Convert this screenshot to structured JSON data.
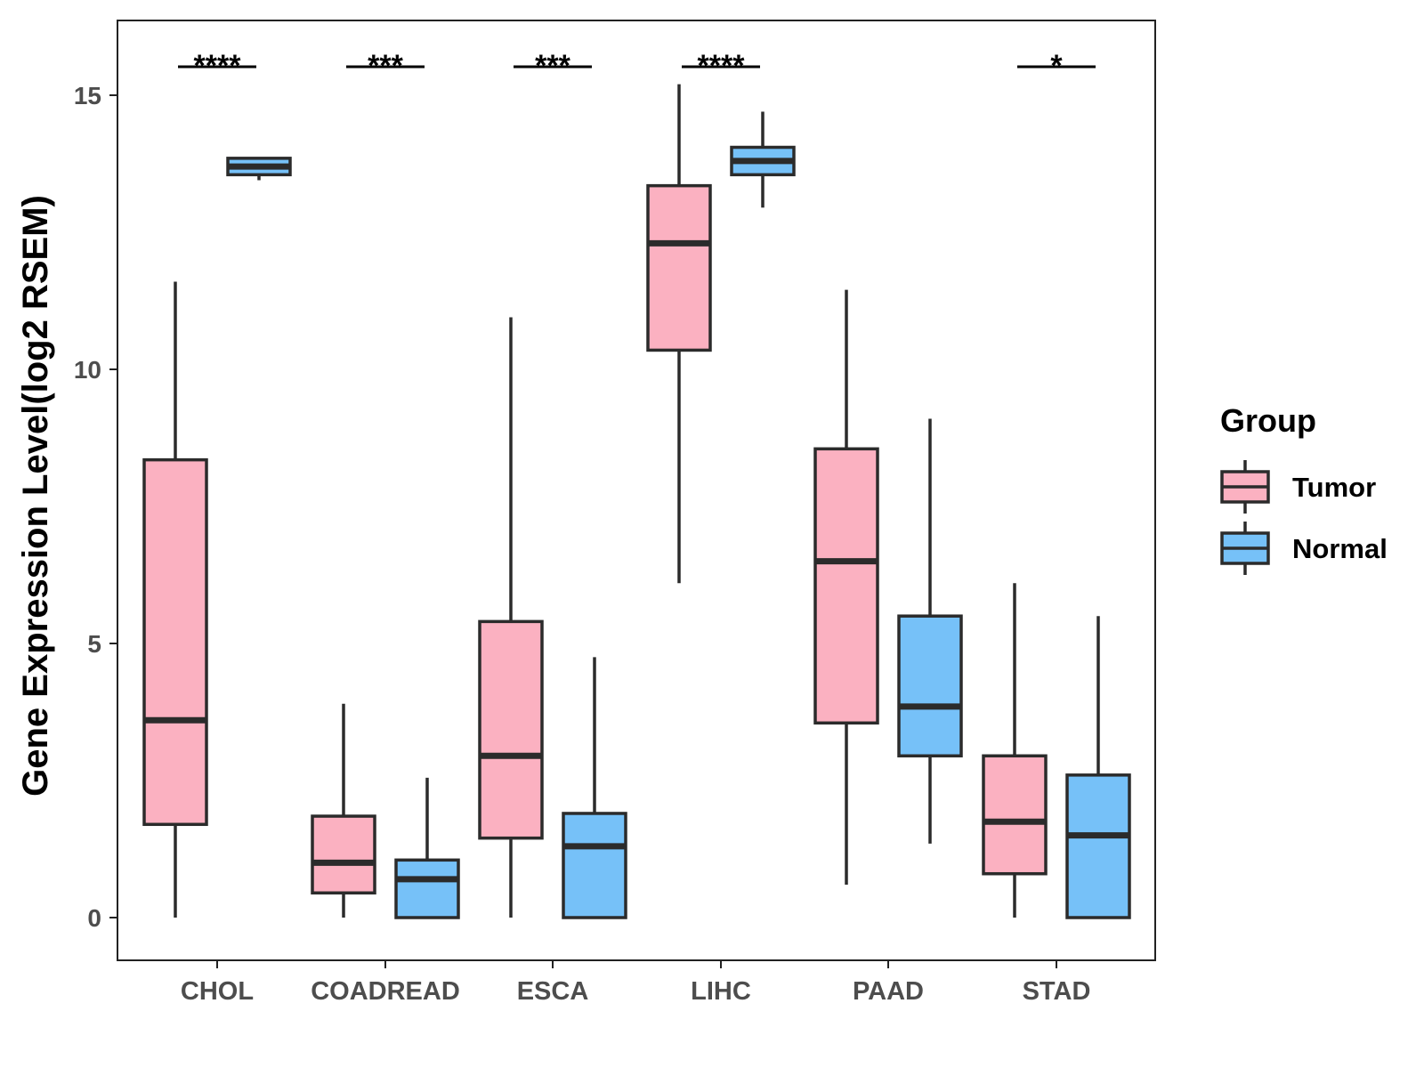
{
  "chart_data": {
    "type": "boxplot",
    "title": "",
    "xlabel": "",
    "ylabel": "Gene Expression Level(log2 RSEM)",
    "ylim": [
      -0.75,
      16.35
    ],
    "yticks": [
      0,
      5,
      10,
      15
    ],
    "grid": false,
    "legend_position": "right",
    "legend_title": "Group",
    "categories": [
      "CHOL",
      "COADREAD",
      "ESCA",
      "LIHC",
      "PAAD",
      "STAD"
    ],
    "series": [
      {
        "name": "Tumor",
        "color": "#FBB1C1",
        "boxes": [
          {
            "whisker_low": 0.0,
            "q1": 1.7,
            "median": 3.6,
            "q3": 8.35,
            "whisker_high": 11.6
          },
          {
            "whisker_low": 0.0,
            "q1": 0.45,
            "median": 1.0,
            "q3": 1.85,
            "whisker_high": 3.9
          },
          {
            "whisker_low": 0.0,
            "q1": 1.45,
            "median": 2.95,
            "q3": 5.4,
            "whisker_high": 10.95
          },
          {
            "whisker_low": 6.1,
            "q1": 10.35,
            "median": 12.3,
            "q3": 13.35,
            "whisker_high": 15.2
          },
          {
            "whisker_low": 0.6,
            "q1": 3.55,
            "median": 6.5,
            "q3": 8.55,
            "whisker_high": 11.45
          },
          {
            "whisker_low": 0.0,
            "q1": 0.8,
            "median": 1.75,
            "q3": 2.95,
            "whisker_high": 6.1
          }
        ]
      },
      {
        "name": "Normal",
        "color": "#76C1F8",
        "boxes": [
          {
            "whisker_low": 13.45,
            "q1": 13.55,
            "median": 13.7,
            "q3": 13.85,
            "whisker_high": 13.85
          },
          {
            "whisker_low": 0.0,
            "q1": 0.0,
            "median": 0.7,
            "q3": 1.05,
            "whisker_high": 2.55
          },
          {
            "whisker_low": 0.0,
            "q1": 0.0,
            "median": 1.3,
            "q3": 1.9,
            "whisker_high": 4.75
          },
          {
            "whisker_low": 12.95,
            "q1": 13.55,
            "median": 13.8,
            "q3": 14.05,
            "whisker_high": 14.7
          },
          {
            "whisker_low": 1.35,
            "q1": 2.95,
            "median": 3.85,
            "q3": 5.5,
            "whisker_high": 9.1
          },
          {
            "whisker_low": 0.0,
            "q1": 0.0,
            "median": 1.5,
            "q3": 2.6,
            "whisker_high": 5.5
          }
        ]
      }
    ],
    "significance": [
      "****",
      "***",
      "***",
      "****",
      "",
      "*"
    ]
  }
}
